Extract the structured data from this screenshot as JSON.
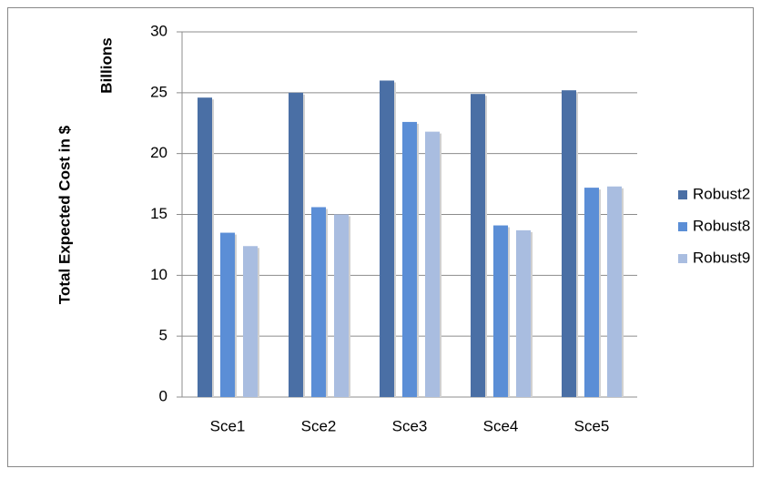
{
  "chart_data": {
    "type": "bar",
    "y_label": "Total Expected Cost in $",
    "display_unit": "Billions",
    "categories": [
      "Sce1",
      "Sce2",
      "Sce3",
      "Sce4",
      "Sce5"
    ],
    "series": [
      {
        "name": "Robust2",
        "color": "#4a6fa5",
        "values": [
          24.6,
          25.0,
          26.0,
          24.9,
          25.2
        ]
      },
      {
        "name": "Robust8",
        "color": "#5b8ed6",
        "values": [
          13.5,
          15.6,
          22.6,
          14.1,
          17.2
        ]
      },
      {
        "name": "Robust9",
        "color": "#a9bde0",
        "values": [
          12.4,
          15.0,
          21.8,
          13.7,
          17.3
        ]
      }
    ],
    "ylim": [
      0,
      30
    ],
    "yticks": [
      0,
      5,
      10,
      15,
      20,
      25,
      30
    ],
    "grid": true,
    "legend": "right"
  }
}
